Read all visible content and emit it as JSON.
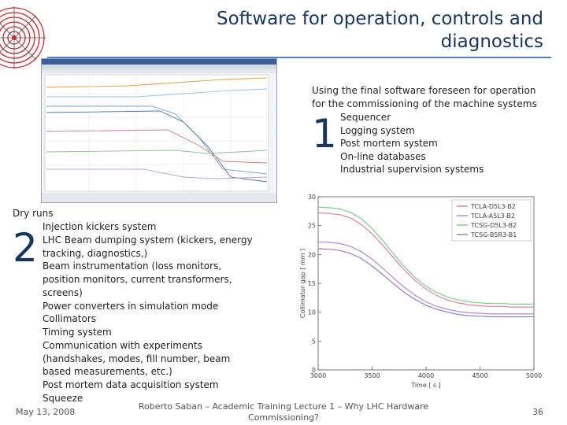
{
  "slide": {
    "title_line1": "Software for operation, controls and",
    "title_line2": "diagnostics",
    "intro_line1": "Using the final software foreseen for operation",
    "intro_line2": "for the commissioning of the machine systems",
    "number1": "1",
    "list1": [
      "Sequencer",
      "Logging system",
      "Post mortem system",
      "On-line databases",
      "Industrial supervision systems"
    ],
    "dry_runs": "Dry runs",
    "number2": "2",
    "list2_lines": [
      "Injection kickers system",
      "LHC Beam dumping system (kickers, energy",
      "tracking, diagnostics,)",
      "Beam instrumentation (loss monitors,",
      "position monitors, current transformers,",
      "screens)",
      "Power converters in simulation mode",
      "Collimators",
      "Timing system",
      "Communication with experiments",
      "(handshakes, modes, fill number, beam",
      "based measurements, etc.)",
      "Post mortem data acquisition system",
      "Squeeze"
    ]
  },
  "footer": {
    "date": "May 13, 2008",
    "center_line1": "Roberto Saban – Academic Training Lecture 1 – Why LHC Hardware",
    "center_line2": "Commissioning?",
    "page": "36"
  },
  "colors": {
    "accent": "#4f81bd",
    "title": "#17365d"
  },
  "chart_data": {
    "type": "line",
    "xlabel": "Time [ s ]",
    "ylabel": "Collimator gap [ mm ]",
    "xlim": [
      3000,
      5000
    ],
    "ylim": [
      0,
      30
    ],
    "x_ticks": [
      3000,
      3500,
      4000,
      4500,
      5000
    ],
    "y_ticks": [
      0,
      5,
      10,
      15,
      20,
      25,
      30
    ],
    "legend_position": "top-right",
    "x": [
      3000,
      3100,
      3200,
      3300,
      3400,
      3500,
      3600,
      3700,
      3800,
      3900,
      4000,
      4100,
      4200,
      4300,
      4400,
      4500,
      4600,
      4700,
      4800,
      4900,
      5000
    ],
    "series": [
      {
        "name": "TCLA-D5L3-B2",
        "color": "#e07fa8",
        "values": [
          27.2,
          27.1,
          26.9,
          26.3,
          25.2,
          23.6,
          21.6,
          19.4,
          17.3,
          15.5,
          14.0,
          12.9,
          12.1,
          11.6,
          11.3,
          11.1,
          11.0,
          11.0,
          10.9,
          10.9,
          10.9
        ]
      },
      {
        "name": "TCLA-A5L3-B2",
        "color": "#b08cd8",
        "values": [
          22.2,
          22.1,
          21.9,
          21.4,
          20.5,
          19.2,
          17.6,
          15.9,
          14.3,
          12.9,
          11.8,
          11.0,
          10.5,
          10.1,
          9.9,
          9.8,
          9.7,
          9.7,
          9.7,
          9.7,
          9.7
        ]
      },
      {
        "name": "TCSG-D5L3-B2",
        "color": "#80d080",
        "values": [
          28.2,
          28.1,
          27.9,
          27.3,
          26.2,
          24.5,
          22.4,
          20.1,
          17.9,
          16.0,
          14.5,
          13.4,
          12.6,
          12.1,
          11.8,
          11.6,
          11.5,
          11.5,
          11.4,
          11.4,
          11.4
        ]
      },
      {
        "name": "TCSG-B5R3-B1",
        "color": "#8f7fd0",
        "values": [
          21.0,
          20.9,
          20.7,
          20.2,
          19.3,
          18.0,
          16.5,
          14.9,
          13.4,
          12.2,
          11.2,
          10.5,
          10.0,
          9.6,
          9.4,
          9.3,
          9.2,
          9.2,
          9.2,
          9.2,
          9.2
        ]
      }
    ]
  }
}
